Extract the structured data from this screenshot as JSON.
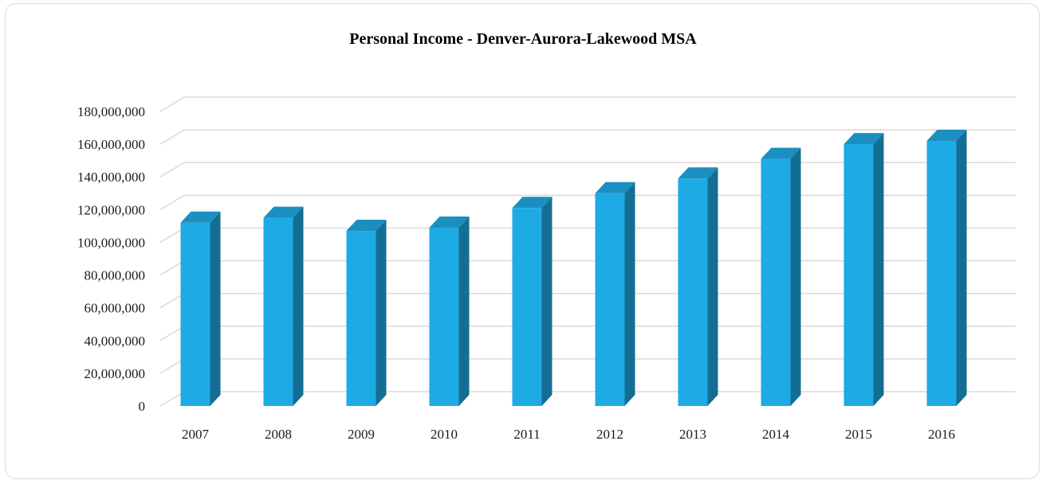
{
  "chart_data": {
    "type": "bar",
    "title": "Personal Income - Denver-Aurora-Lakewood MSA",
    "xlabel": "",
    "ylabel": "",
    "categories": [
      "2007",
      "2008",
      "2009",
      "2010",
      "2011",
      "2012",
      "2013",
      "2014",
      "2015",
      "2016"
    ],
    "values": [
      112000000,
      115000000,
      107000000,
      109000000,
      121000000,
      130000000,
      139000000,
      151000000,
      160000000,
      162000000
    ],
    "ylim": [
      0,
      180000000
    ],
    "yticks": [
      0,
      20000000,
      40000000,
      60000000,
      80000000,
      100000000,
      120000000,
      140000000,
      160000000,
      180000000
    ],
    "ytick_labels": [
      "0",
      "20,000,000",
      "40,000,000",
      "60,000,000",
      "80,000,000",
      "100,000,000",
      "120,000,000",
      "140,000,000",
      "160,000,000",
      "180,000,000"
    ],
    "grid": true,
    "legend": "none",
    "style": "3d-column",
    "colors": {
      "front": "#1eaae4",
      "side": "#146e93",
      "top": "#1a8fc0",
      "grid": "#d9d9d9"
    }
  }
}
